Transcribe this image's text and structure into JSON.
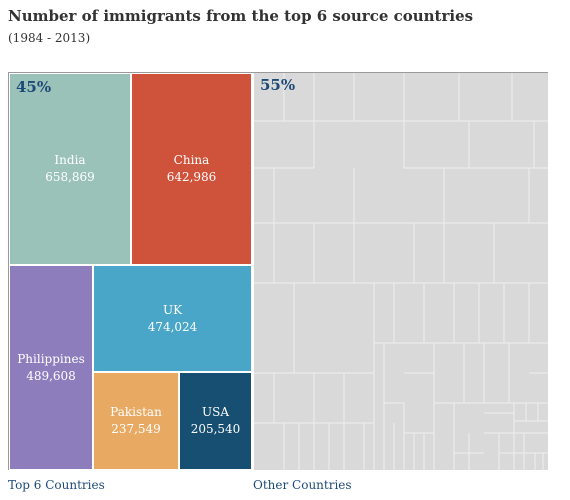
{
  "title": "Number of immigrants from the top 6 source countries",
  "subtitle": "(1984 - 2013)",
  "chart_data": {
    "type": "treemap",
    "groups": [
      {
        "name": "Top 6 Countries",
        "percent_label": "45%",
        "items": [
          {
            "name": "India",
            "value": 658869,
            "value_label": "658,869",
            "color": "#9bc2b9"
          },
          {
            "name": "China",
            "value": 642986,
            "value_label": "642,986",
            "color": "#cf523a"
          },
          {
            "name": "Philippines",
            "value": 489608,
            "value_label": "489,608",
            "color": "#8e7dbd"
          },
          {
            "name": "UK",
            "value": 474024,
            "value_label": "474,024",
            "color": "#4aa6c9"
          },
          {
            "name": "Pakistan",
            "value": 237549,
            "value_label": "237,549",
            "color": "#e8a963"
          },
          {
            "name": "USA",
            "value": 205540,
            "value_label": "205,540",
            "color": "#174f72"
          }
        ]
      },
      {
        "name": "Other Countries",
        "percent_label": "55%",
        "color": "#d9d9d9"
      }
    ]
  }
}
